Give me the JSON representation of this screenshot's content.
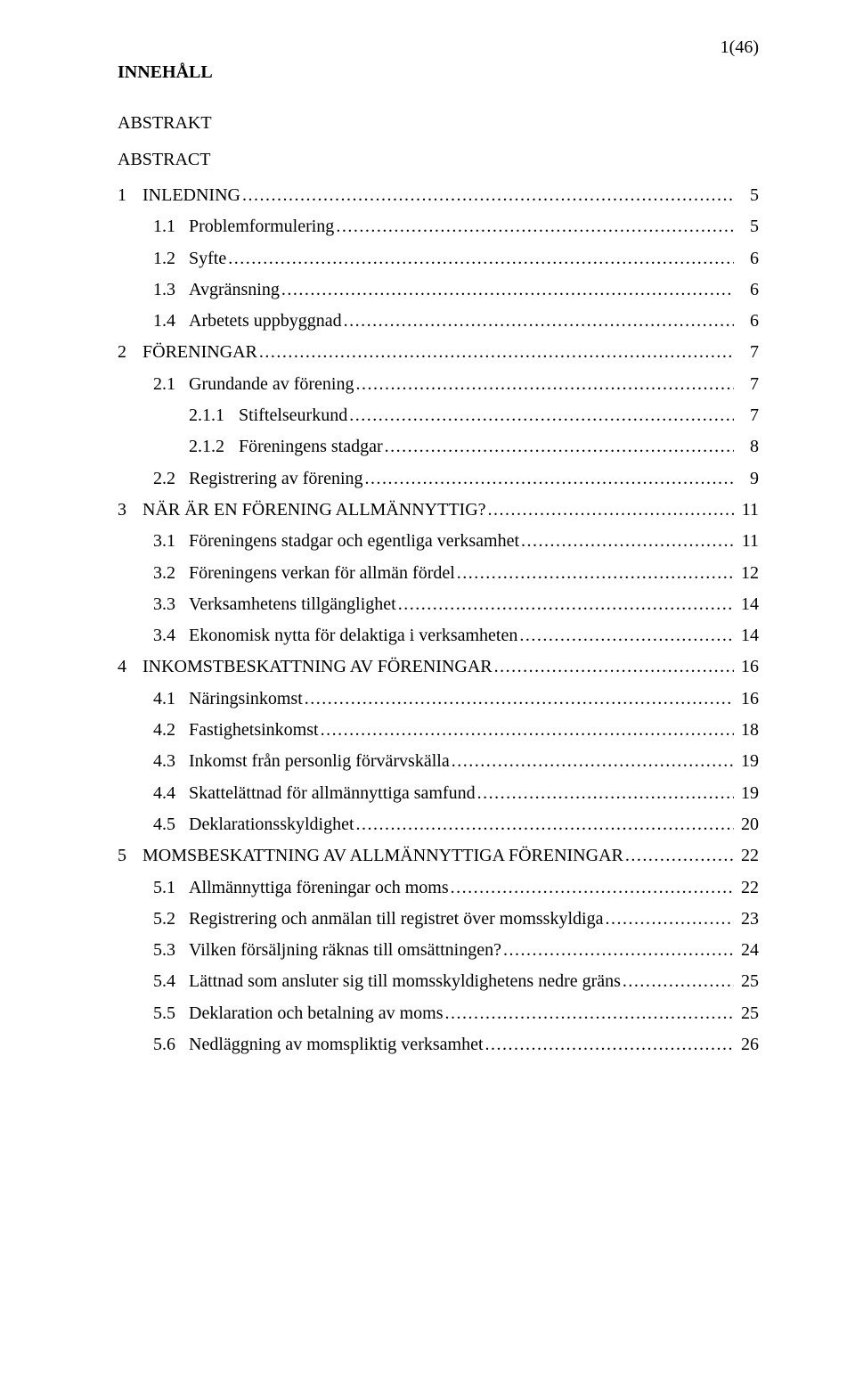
{
  "page_indicator": "1(46)",
  "title": "INNEHÅLL",
  "front_matter": [
    "ABSTRAKT",
    "ABSTRACT"
  ],
  "entries": [
    {
      "level": 1,
      "num": "1",
      "label": "INLEDNING",
      "page": "5"
    },
    {
      "level": 2,
      "num": "1.1",
      "label": "Problemformulering",
      "page": "5"
    },
    {
      "level": 2,
      "num": "1.2",
      "label": "Syfte",
      "page": "6"
    },
    {
      "level": 2,
      "num": "1.3",
      "label": "Avgränsning",
      "page": "6"
    },
    {
      "level": 2,
      "num": "1.4",
      "label": "Arbetets uppbyggnad",
      "page": "6"
    },
    {
      "level": 1,
      "num": "2",
      "label": "FÖRENINGAR",
      "page": "7"
    },
    {
      "level": 2,
      "num": "2.1",
      "label": "Grundande av förening",
      "page": "7"
    },
    {
      "level": 3,
      "num": "2.1.1",
      "label": "Stiftelseurkund",
      "page": "7"
    },
    {
      "level": 3,
      "num": "2.1.2",
      "label": "Föreningens stadgar",
      "page": "8"
    },
    {
      "level": 2,
      "num": "2.2",
      "label": "Registrering av förening",
      "page": "9"
    },
    {
      "level": 1,
      "num": "3",
      "label": "NÄR ÄR EN FÖRENING ALLMÄNNYTTIG?",
      "page": "11"
    },
    {
      "level": 2,
      "num": "3.1",
      "label": "Föreningens stadgar och egentliga verksamhet",
      "page": "11"
    },
    {
      "level": 2,
      "num": "3.2",
      "label": "Föreningens verkan för allmän fördel",
      "page": "12"
    },
    {
      "level": 2,
      "num": "3.3",
      "label": "Verksamhetens tillgänglighet",
      "page": "14"
    },
    {
      "level": 2,
      "num": "3.4",
      "label": "Ekonomisk nytta för delaktiga i verksamheten",
      "page": "14"
    },
    {
      "level": 1,
      "num": "4",
      "label": "INKOMSTBESKATTNING AV FÖRENINGAR",
      "page": "16"
    },
    {
      "level": 2,
      "num": "4.1",
      "label": "Näringsinkomst",
      "page": "16"
    },
    {
      "level": 2,
      "num": "4.2",
      "label": "Fastighetsinkomst",
      "page": "18"
    },
    {
      "level": 2,
      "num": "4.3",
      "label": "Inkomst från personlig förvärvskälla",
      "page": "19"
    },
    {
      "level": 2,
      "num": "4.4",
      "label": "Skattelättnad för allmännyttiga samfund",
      "page": "19"
    },
    {
      "level": 2,
      "num": "4.5",
      "label": "Deklarationsskyldighet",
      "page": "20"
    },
    {
      "level": 1,
      "num": "5",
      "label": "MOMSBESKATTNING AV ALLMÄNNYTTIGA FÖRENINGAR",
      "page": "22"
    },
    {
      "level": 2,
      "num": "5.1",
      "label": "Allmännyttiga föreningar och moms",
      "page": "22"
    },
    {
      "level": 2,
      "num": "5.2",
      "label": "Registrering och anmälan till registret över momsskyldiga",
      "page": "23"
    },
    {
      "level": 2,
      "num": "5.3",
      "label": "Vilken försäljning räknas till omsättningen?",
      "page": "24"
    },
    {
      "level": 2,
      "num": "5.4",
      "label": "Lättnad som ansluter sig till momsskyldighetens nedre gräns",
      "page": "25"
    },
    {
      "level": 2,
      "num": "5.5",
      "label": "Deklaration och betalning av moms",
      "page": "25"
    },
    {
      "level": 2,
      "num": "5.6",
      "label": "Nedläggning av momspliktig verksamhet",
      "page": "26"
    }
  ]
}
